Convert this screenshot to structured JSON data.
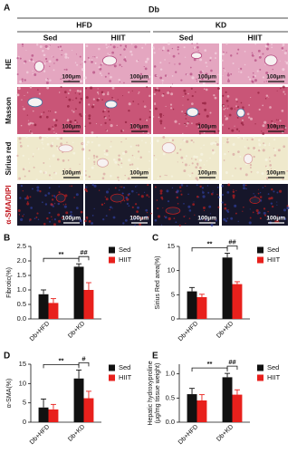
{
  "panel_a": {
    "label": "A",
    "group": "Db",
    "diets": [
      "HFD",
      "KD"
    ],
    "exercise": [
      "Sed",
      "HIIT",
      "Sed",
      "HIIT"
    ],
    "rows": [
      "HE",
      "Masson",
      "Sirius red",
      "α-SMA/DIPI"
    ],
    "scale_bar": "100μm"
  },
  "chart_data": [
    {
      "type": "bar",
      "label": "B",
      "ylabel": "Fibrotic(%)",
      "categories": [
        "Db+HFD",
        "Db+KD"
      ],
      "series": [
        {
          "name": "Sed",
          "color": "#111111",
          "values": [
            0.85,
            1.8
          ],
          "errors": [
            0.15,
            0.1
          ]
        },
        {
          "name": "HIIT",
          "color": "#e8201c",
          "values": [
            0.55,
            1.0
          ],
          "errors": [
            0.15,
            0.25
          ]
        }
      ],
      "ylim": [
        0,
        2.5
      ],
      "yticks": [
        {
          "value": 0,
          "label": "0.0"
        },
        {
          "value": 0.5,
          "label": "0.5"
        },
        {
          "value": 1,
          "label": "1.0"
        },
        {
          "value": 1.5,
          "label": "1.5"
        },
        {
          "value": 2,
          "label": "2.0"
        },
        {
          "value": 2.5,
          "label": "2.5"
        }
      ],
      "annotations": [
        "**",
        "##"
      ]
    },
    {
      "type": "bar",
      "label": "C",
      "ylabel": "Sirius Red area(%)",
      "categories": [
        "Db+HFD",
        "Db+KD"
      ],
      "series": [
        {
          "name": "Sed",
          "color": "#111111",
          "values": [
            5.7,
            12.7
          ],
          "errors": [
            0.8,
            0.9
          ]
        },
        {
          "name": "HIIT",
          "color": "#e8201c",
          "values": [
            4.5,
            7.2
          ],
          "errors": [
            0.6,
            0.5
          ]
        }
      ],
      "ylim": [
        0,
        15
      ],
      "yticks": [
        0,
        5,
        10,
        15
      ],
      "annotations": [
        "**",
        "##"
      ]
    },
    {
      "type": "bar",
      "label": "D",
      "ylabel": "α-SMA(%)",
      "categories": [
        "Db+HFD",
        "Db+KD"
      ],
      "series": [
        {
          "name": "Sed",
          "color": "#111111",
          "values": [
            3.8,
            11.3
          ],
          "errors": [
            2.2,
            2.2
          ]
        },
        {
          "name": "HIIT",
          "color": "#e8201c",
          "values": [
            3.3,
            6.2
          ],
          "errors": [
            1.3,
            1.8
          ]
        }
      ],
      "ylim": [
        0,
        15
      ],
      "yticks": [
        0,
        5,
        10,
        15
      ],
      "annotations": [
        "**",
        "#"
      ]
    },
    {
      "type": "bar",
      "label": "E",
      "ylabel": [
        "Hepatic hydroxyproline",
        "(μg/mg tissue weight)"
      ],
      "categories": [
        "Db+HFD",
        "Db+KD"
      ],
      "series": [
        {
          "name": "Sed",
          "color": "#111111",
          "values": [
            0.58,
            0.93
          ],
          "errors": [
            0.12,
            0.08
          ]
        },
        {
          "name": "HIIT",
          "color": "#e8201c",
          "values": [
            0.45,
            0.57
          ],
          "errors": [
            0.12,
            0.1
          ]
        }
      ],
      "ylim": [
        0,
        1.2
      ],
      "yticks": [
        {
          "value": 0,
          "label": "0.0"
        },
        {
          "value": 0.5,
          "label": "0.5"
        },
        {
          "value": 1,
          "label": "1.0"
        }
      ],
      "annotations": [
        "**",
        "##"
      ]
    }
  ]
}
